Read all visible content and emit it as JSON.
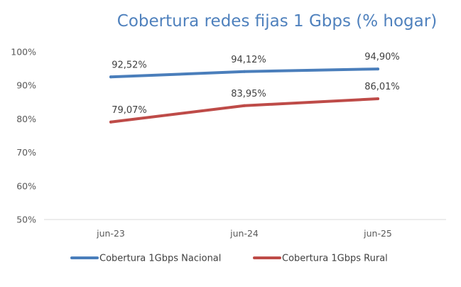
{
  "chart_data": {
    "type": "line",
    "title": "Cobertura redes fijas 1 Gbps (% hogar)",
    "categories": [
      "jun-23",
      "jun-24",
      "jun-25"
    ],
    "yticks": [
      "50%",
      "60%",
      "70%",
      "80%",
      "90%",
      "100%"
    ],
    "ylim": [
      50,
      100
    ],
    "grid": false,
    "legend_position": "bottom",
    "series": [
      {
        "name": "Cobertura 1Gbps Nacional",
        "color": "#4a7ebb",
        "values": [
          92.52,
          94.12,
          94.9
        ],
        "labels": [
          "92,52%",
          "94,12%",
          "94,90%"
        ]
      },
      {
        "name": "Cobertura 1Gbps Rural",
        "color": "#be4b48",
        "values": [
          79.07,
          83.95,
          86.01
        ],
        "labels": [
          "79,07%",
          "83,95%",
          "86,01%"
        ]
      }
    ]
  }
}
